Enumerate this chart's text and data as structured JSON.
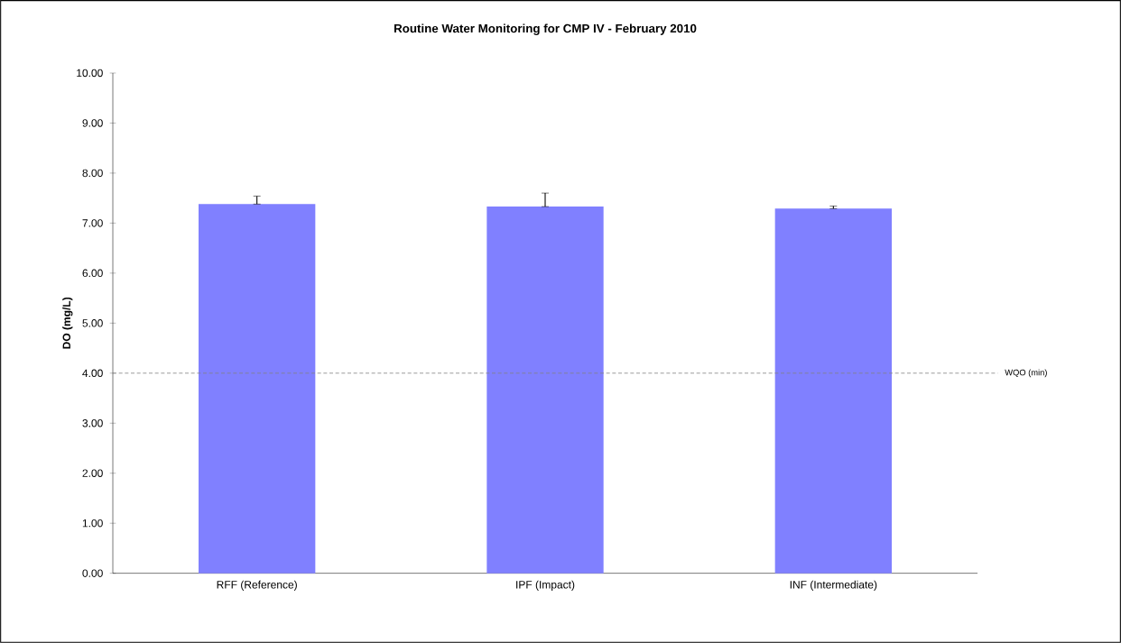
{
  "chart_data": {
    "type": "bar",
    "title": "Routine Water Monitoring for CMP IV - February 2010",
    "ylabel": "DO (mg/L)",
    "categories": [
      "RFF (Reference)",
      "IPF (Impact)",
      "INF (Intermediate)"
    ],
    "values": [
      7.38,
      7.33,
      7.29
    ],
    "color": "#8080ff",
    "errors": [
      [
        7.38,
        7.54
      ],
      [
        7.33,
        7.6
      ],
      [
        7.29,
        7.34
      ]
    ],
    "ylim": [
      0,
      10
    ],
    "yticks": [
      {
        "value": 0,
        "label": "0.00"
      },
      {
        "value": 1,
        "label": "1.00"
      },
      {
        "value": 2,
        "label": "2.00"
      },
      {
        "value": 3,
        "label": "3.00"
      },
      {
        "value": 4,
        "label": "4.00"
      },
      {
        "value": 5,
        "label": "5.00"
      },
      {
        "value": 6,
        "label": "6.00"
      },
      {
        "value": 7,
        "label": "7.00"
      },
      {
        "value": 8,
        "label": "8.00"
      },
      {
        "value": 9,
        "label": "9.00"
      },
      {
        "value": 10,
        "label": "10.00"
      }
    ],
    "ref_lines": [
      {
        "axis": "y",
        "value": 4,
        "label": "WQO (min)",
        "color": "#808080",
        "line_style": "dashed"
      }
    ],
    "grid": false
  }
}
